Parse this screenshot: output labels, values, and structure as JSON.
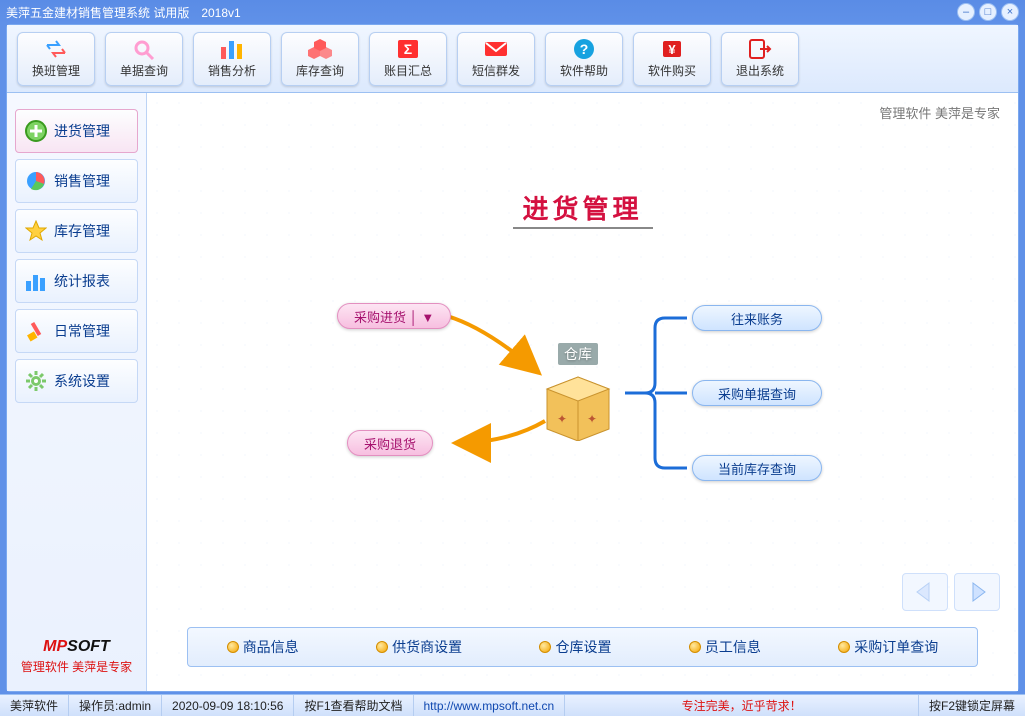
{
  "title": "美萍五金建材销售管理系统 试用版　2018v1",
  "watermark": "管理软件 美萍是专家",
  "toolbar": [
    {
      "label": "换班管理",
      "icon": "swap",
      "colors": [
        "#3aa0ff",
        "#ff5a5a"
      ]
    },
    {
      "label": "单据查询",
      "icon": "search",
      "colors": [
        "#ff9dd1"
      ]
    },
    {
      "label": "销售分析",
      "icon": "bars",
      "colors": [
        "#ff5a5a",
        "#3aa0ff",
        "#ffb400"
      ]
    },
    {
      "label": "库存查询",
      "icon": "cubes",
      "colors": [
        "#ff5a5a"
      ]
    },
    {
      "label": "账目汇总",
      "icon": "sigma",
      "colors": [
        "#ff3030"
      ]
    },
    {
      "label": "短信群发",
      "icon": "mail",
      "colors": [
        "#ff3030"
      ]
    },
    {
      "label": "软件帮助",
      "icon": "help",
      "colors": [
        "#17a2e0"
      ]
    },
    {
      "label": "软件购买",
      "icon": "buy",
      "colors": [
        "#e02020"
      ]
    },
    {
      "label": "退出系统",
      "icon": "exit",
      "colors": [
        "#e02020"
      ]
    }
  ],
  "sidebar": {
    "items": [
      {
        "label": "进货管理",
        "icon": "plus",
        "active": true
      },
      {
        "label": "销售管理",
        "icon": "pie",
        "active": false
      },
      {
        "label": "库存管理",
        "icon": "star",
        "active": false
      },
      {
        "label": "统计报表",
        "icon": "chart",
        "active": false
      },
      {
        "label": "日常管理",
        "icon": "brush",
        "active": false
      },
      {
        "label": "系统设置",
        "icon": "gear",
        "active": false
      }
    ],
    "brand_logo": "MPSOFT",
    "brand_tag": "管理软件 美萍是专家"
  },
  "main": {
    "title": "进货管理",
    "warehouse_label": "仓库",
    "pill_purchase_in": "采购进货 │ ▼",
    "pill_purchase_return": "采购退货",
    "pill_account": "往来账务",
    "pill_order_query": "采购单据查询",
    "pill_stock_query": "当前库存查询"
  },
  "bottom_links": [
    "商品信息",
    "供货商设置",
    "仓库设置",
    "员工信息",
    "采购订单查询"
  ],
  "status": {
    "app": "美萍软件",
    "operator_label": "操作员:",
    "operator": "admin",
    "datetime": "2020-09-09 18:10:56",
    "help": "按F1查看帮助文档",
    "url": "http://www.mpsoft.net.cn",
    "slogan": "专注完美，近乎苛求！",
    "lock": "按F2键锁定屏幕"
  },
  "colors": {
    "accent_pink": "#e38fc0",
    "accent_blue": "#8ab6ef",
    "arrow": "#f59a00",
    "title_red": "#d41140"
  }
}
